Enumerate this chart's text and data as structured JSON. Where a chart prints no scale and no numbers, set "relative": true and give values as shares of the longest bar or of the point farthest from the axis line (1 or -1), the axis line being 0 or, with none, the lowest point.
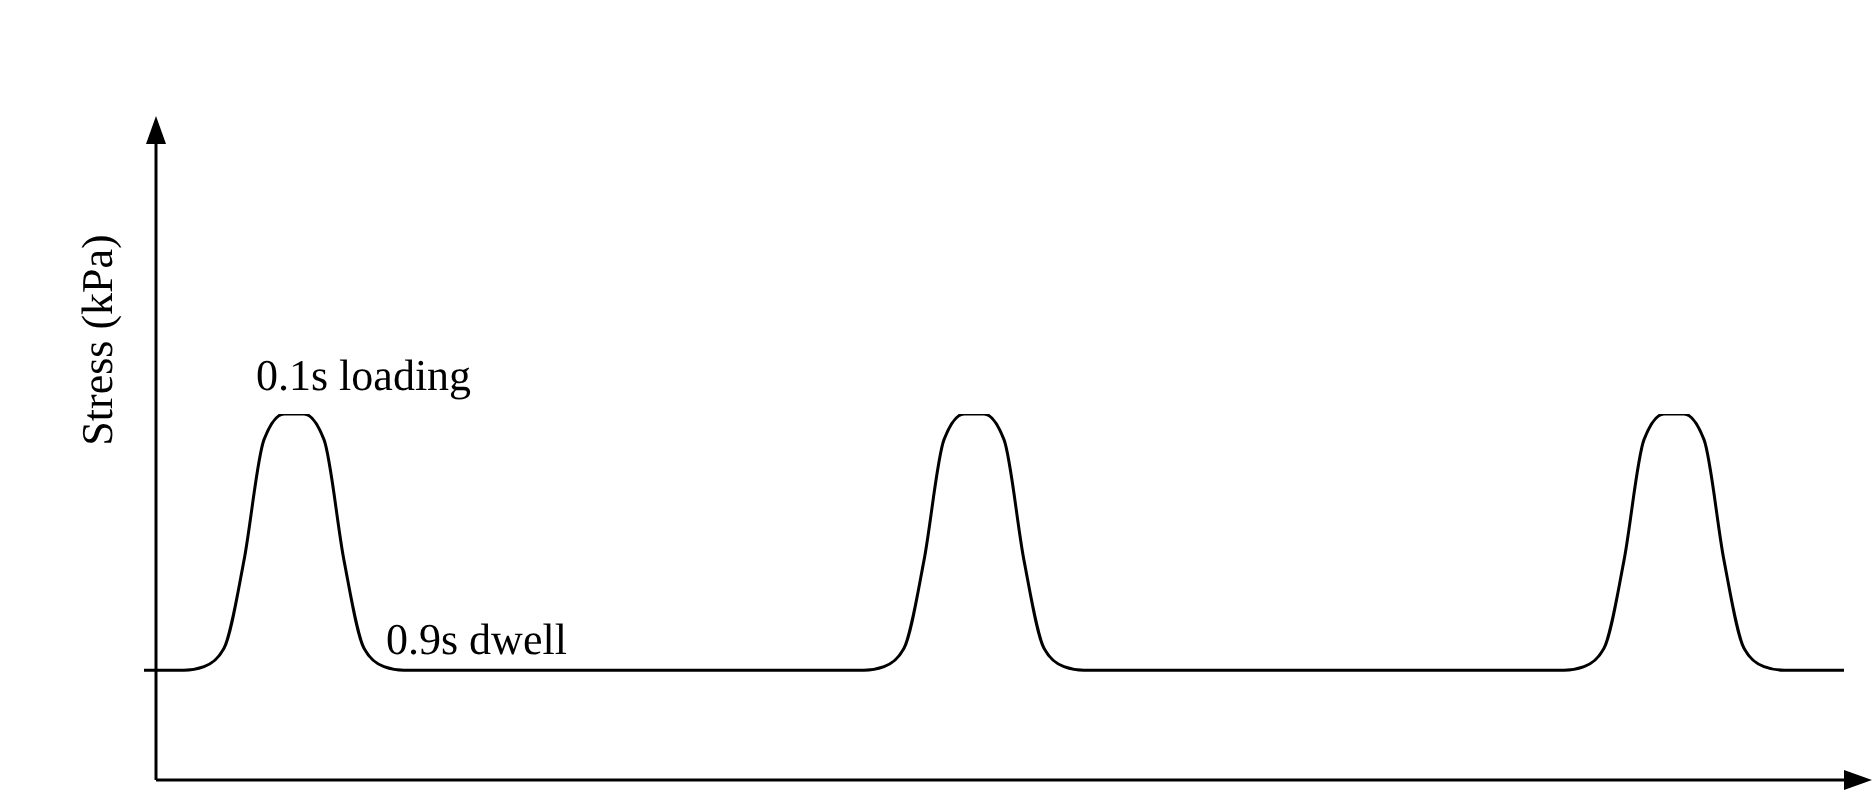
{
  "chart_data": {
    "type": "line",
    "relative": true,
    "ylabel": "Stress (kPa)",
    "annotations": [
      "0.1s loading",
      "0.9s dwell"
    ],
    "marker": "none",
    "line_style": "solid",
    "grid": false,
    "legend": false,
    "categories": [
      null,
      null,
      null,
      null,
      null,
      null,
      null,
      null,
      null,
      null,
      null,
      null,
      null,
      null,
      null,
      null,
      null,
      null,
      null,
      null,
      null,
      null,
      null,
      null,
      null,
      null,
      null,
      null,
      null,
      null,
      null,
      null,
      null,
      null,
      null,
      null,
      null,
      null,
      null,
      null,
      null,
      null,
      null,
      null,
      null,
      null,
      null,
      null,
      null,
      null,
      null,
      null,
      null,
      null,
      null,
      null,
      null,
      null,
      null,
      null,
      null,
      null,
      null,
      null,
      null,
      null,
      null,
      null,
      null,
      null,
      null,
      null,
      null,
      null,
      null,
      null,
      null,
      null,
      null,
      null,
      null,
      null,
      null,
      null,
      null,
      null
    ],
    "series": [
      {
        "color": "#000000",
        "values": [
          0.3,
          0.3,
          0.3,
          0.31,
          0.36,
          0.6,
          0.93,
          1,
          1,
          0.93,
          0.6,
          0.36,
          0.31,
          0.3,
          0.3,
          0.3,
          0.3,
          0.3,
          0.3,
          0.3,
          0.3,
          0.3,
          0.3,
          0.3,
          0.3,
          0.3,
          0.3,
          0.3,
          0.3,
          0.3,
          0.3,
          0.3,
          0.3,
          0.3,
          0.3,
          0.3,
          0.3,
          0.31,
          0.36,
          0.6,
          0.93,
          1,
          1,
          0.93,
          0.6,
          0.36,
          0.31,
          0.3,
          0.3,
          0.3,
          0.3,
          0.3,
          0.3,
          0.3,
          0.3,
          0.3,
          0.3,
          0.3,
          0.3,
          0.3,
          0.3,
          0.3,
          0.3,
          0.3,
          0.3,
          0.3,
          0.3,
          0.3,
          0.3,
          0.3,
          0.3,
          0.3,
          0.31,
          0.36,
          0.6,
          0.93,
          1,
          1,
          0.93,
          0.6,
          0.36,
          0.31,
          0.3,
          0.3,
          0.3,
          0.3
        ]
      }
    ]
  }
}
